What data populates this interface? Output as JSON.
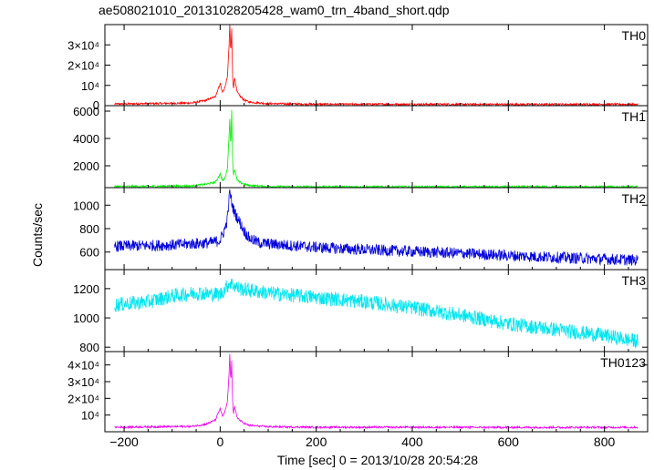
{
  "chart_data": {
    "type": "line",
    "title": "ae508021010_20131028205428_wam0_trn_4band_short.qdp",
    "xlabel": "Time [sec] 0 = 2013/10/28 20:54:28",
    "ylabel": "Counts/sec",
    "xlim": [
      -240,
      890
    ],
    "x_ticks": [
      -200,
      0,
      200,
      400,
      600,
      800
    ],
    "x_tick_labels": [
      "−200",
      "0",
      "200",
      "400",
      "600",
      "800"
    ],
    "panels": [
      {
        "name": "TH0",
        "color": "#ff0000",
        "ylim": [
          0,
          40000
        ],
        "y_ticks": [
          10000,
          20000,
          30000
        ],
        "y_tick_labels": [
          "10⁴",
          "2×10⁴",
          "3×10⁴"
        ],
        "baseline_label": "0",
        "x": [
          -220,
          -60,
          -30,
          -10,
          0,
          5,
          10,
          15,
          18,
          20,
          22,
          24,
          26,
          28,
          30,
          35,
          40,
          50,
          60,
          100,
          200,
          400,
          600,
          870
        ],
        "y": [
          800,
          1300,
          2600,
          4500,
          11000,
          6500,
          9000,
          14000,
          27000,
          40000,
          26000,
          38000,
          12000,
          9000,
          14000,
          7000,
          5000,
          2800,
          1800,
          1000,
          700,
          700,
          650,
          650
        ]
      },
      {
        "name": "TH1",
        "color": "#00ee00",
        "ylim": [
          400,
          6400
        ],
        "y_ticks": [
          2000,
          4000,
          6000
        ],
        "y_tick_labels": [
          "2000",
          "4000",
          "6000"
        ],
        "x": [
          -220,
          -60,
          -30,
          -10,
          0,
          5,
          10,
          15,
          18,
          20,
          22,
          24,
          26,
          28,
          30,
          35,
          40,
          50,
          60,
          100,
          200,
          400,
          600,
          870
        ],
        "y": [
          480,
          520,
          650,
          800,
          1400,
          900,
          1100,
          1800,
          3800,
          5500,
          3300,
          6100,
          2200,
          1300,
          1800,
          1000,
          800,
          650,
          560,
          480,
          460,
          460,
          460,
          460
        ]
      },
      {
        "name": "TH2",
        "color": "#0000dd",
        "ylim": [
          450,
          1150
        ],
        "y_ticks": [
          600,
          800,
          1000
        ],
        "y_tick_labels": [
          "600",
          "800",
          "1000"
        ],
        "x": [
          -220,
          -100,
          -20,
          0,
          10,
          15,
          20,
          25,
          30,
          40,
          50,
          60,
          80,
          100,
          200,
          300,
          400,
          500,
          600,
          700,
          800,
          870
        ],
        "y": [
          650,
          660,
          680,
          700,
          800,
          880,
          1120,
          1000,
          940,
          860,
          780,
          720,
          680,
          670,
          640,
          620,
          605,
          590,
          570,
          555,
          540,
          530
        ]
      },
      {
        "name": "TH3",
        "color": "#00e5ee",
        "ylim": [
          770,
          1330
        ],
        "y_ticks": [
          800,
          1000,
          1200
        ],
        "y_tick_labels": [
          "800",
          "1000",
          "1200"
        ],
        "x": [
          -220,
          -150,
          -100,
          -50,
          0,
          20,
          40,
          100,
          200,
          300,
          400,
          500,
          600,
          700,
          800,
          870
        ],
        "y": [
          1090,
          1110,
          1150,
          1170,
          1160,
          1240,
          1200,
          1170,
          1140,
          1110,
          1070,
          1020,
          960,
          920,
          880,
          840
        ]
      },
      {
        "name": "TH0123",
        "color": "#ee00ee",
        "ylim": [
          0,
          48000
        ],
        "y_ticks": [
          10000,
          20000,
          30000,
          40000
        ],
        "y_tick_labels": [
          "10⁴",
          "2×10⁴",
          "3×10⁴",
          "4×10⁴"
        ],
        "x": [
          -220,
          -60,
          -30,
          -10,
          0,
          5,
          10,
          15,
          18,
          20,
          22,
          24,
          26,
          28,
          30,
          35,
          40,
          50,
          60,
          100,
          200,
          400,
          600,
          870
        ],
        "y": [
          2700,
          3200,
          4500,
          7000,
          14000,
          9000,
          12000,
          18000,
          32000,
          46000,
          30000,
          43000,
          16000,
          11000,
          15000,
          9000,
          7000,
          5000,
          3800,
          3000,
          2700,
          2700,
          2600,
          2600
        ]
      }
    ]
  }
}
